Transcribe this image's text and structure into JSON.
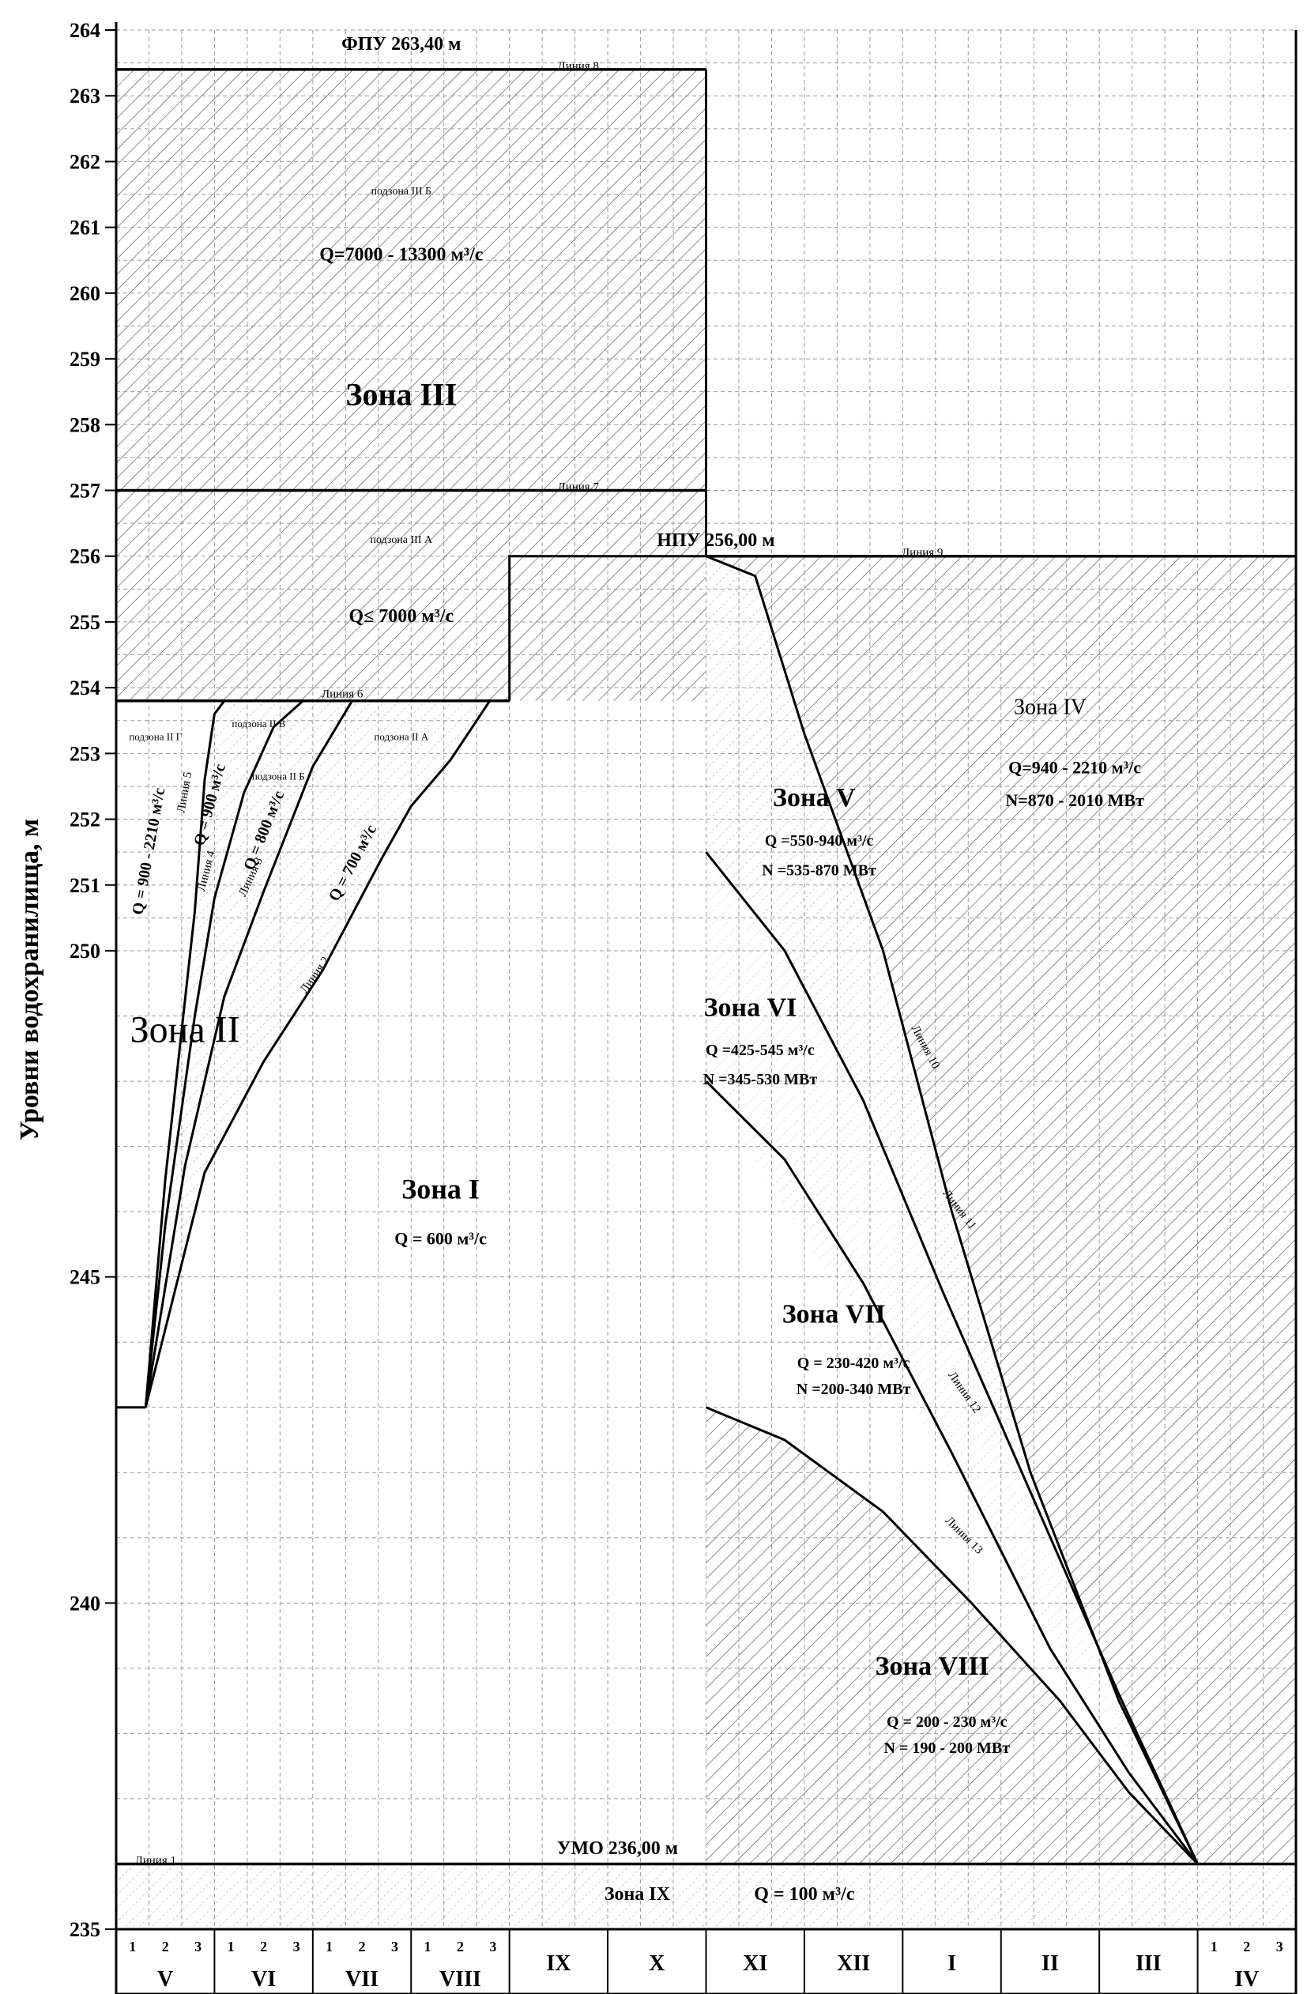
{
  "chart_data": {
    "type": "area",
    "title": "",
    "ylabel": "Уровни водохранилища, м",
    "xlabel": "",
    "ylim": [
      235,
      264
    ],
    "y_ticks": [
      235,
      240,
      245,
      250,
      251,
      252,
      253,
      254,
      255,
      256,
      257,
      258,
      259,
      260,
      261,
      262,
      263,
      264
    ],
    "grid": true,
    "months": [
      {
        "id": "V",
        "label": "V",
        "decades": [
          "1",
          "2",
          "3"
        ]
      },
      {
        "id": "VI",
        "label": "VI",
        "decades": [
          "1",
          "2",
          "3"
        ]
      },
      {
        "id": "VII",
        "label": "VII",
        "decades": [
          "1",
          "2",
          "3"
        ]
      },
      {
        "id": "VIII",
        "label": "VIII",
        "decades": [
          "1",
          "2",
          "3"
        ]
      },
      {
        "id": "IX",
        "label": "IX",
        "decades": []
      },
      {
        "id": "X",
        "label": "X",
        "decades": []
      },
      {
        "id": "XI",
        "label": "XI",
        "decades": []
      },
      {
        "id": "XII",
        "label": "XII",
        "decades": []
      },
      {
        "id": "I",
        "label": "I",
        "decades": []
      },
      {
        "id": "II",
        "label": "II",
        "decades": []
      },
      {
        "id": "III",
        "label": "III",
        "decades": []
      },
      {
        "id": "IV",
        "label": "IV",
        "decades": [
          "1",
          "2",
          "3"
        ]
      }
    ],
    "levels": {
      "fpu": {
        "label": "ФПУ 263,40 м",
        "value": 263.4
      },
      "npu": {
        "label": "НПУ 256,00 м",
        "value": 256.0
      },
      "umo": {
        "label": "УМО 236,00 м",
        "value": 236.0
      }
    },
    "lines": [
      {
        "name": "Линия 1",
        "points": [
          [
            0,
            236.0
          ],
          [
            12,
            236.0
          ]
        ]
      },
      {
        "name": "Линия 2",
        "points": [
          [
            0.3,
            243.0
          ],
          [
            0.9,
            246.6
          ],
          [
            1.5,
            248.3
          ],
          [
            2.1,
            249.7
          ],
          [
            2.7,
            251.4
          ],
          [
            3.0,
            252.2
          ],
          [
            3.4,
            252.9
          ],
          [
            3.8,
            253.8
          ],
          [
            4.0,
            253.8
          ]
        ]
      },
      {
        "name": "Линия 3",
        "points": [
          [
            0.3,
            243.0
          ],
          [
            0.7,
            246.7
          ],
          [
            1.1,
            249.3
          ],
          [
            1.5,
            250.9
          ],
          [
            2.0,
            252.8
          ],
          [
            2.4,
            253.8
          ],
          [
            4.0,
            253.8
          ]
        ]
      },
      {
        "name": "Линия 4",
        "points": [
          [
            0.3,
            243.0
          ],
          [
            0.5,
            245.8
          ],
          [
            0.8,
            249.0
          ],
          [
            1.0,
            250.8
          ],
          [
            1.3,
            252.4
          ],
          [
            1.6,
            253.4
          ],
          [
            1.9,
            253.8
          ],
          [
            4.0,
            253.8
          ]
        ]
      },
      {
        "name": "Линия 5",
        "points": [
          [
            0.3,
            243.0
          ],
          [
            0.5,
            246.5
          ],
          [
            0.8,
            250.6
          ],
          [
            0.9,
            252.6
          ],
          [
            1.0,
            253.6
          ],
          [
            1.1,
            253.8
          ],
          [
            4.0,
            253.8
          ]
        ]
      },
      {
        "name": "Линия 6",
        "points": [
          [
            0,
            253.8
          ],
          [
            4.0,
            253.8
          ]
        ]
      },
      {
        "name": "Линия 7",
        "points": [
          [
            0,
            257.0
          ],
          [
            6.0,
            257.0
          ]
        ]
      },
      {
        "name": "Линия 8",
        "points": [
          [
            0,
            263.4
          ],
          [
            6.0,
            263.4
          ]
        ]
      },
      {
        "name": "Линия 9",
        "points": [
          [
            6.0,
            256.0
          ],
          [
            12,
            256.0
          ]
        ]
      },
      {
        "name": "Линия 10",
        "points": [
          [
            6.0,
            256.0
          ],
          [
            6.5,
            255.7
          ],
          [
            7.0,
            253.3
          ],
          [
            7.8,
            250.0
          ],
          [
            8.5,
            246.0
          ],
          [
            9.3,
            242.0
          ],
          [
            10.2,
            238.5
          ],
          [
            11.0,
            236.0
          ]
        ]
      },
      {
        "name": "Линия 11",
        "points": [
          [
            6.0,
            251.5
          ],
          [
            6.8,
            250.0
          ],
          [
            7.6,
            247.7
          ],
          [
            8.4,
            244.8
          ],
          [
            9.3,
            241.7
          ],
          [
            10.2,
            238.6
          ],
          [
            11.0,
            236.0
          ]
        ]
      },
      {
        "name": "Линия 12",
        "points": [
          [
            6.0,
            248.0
          ],
          [
            6.8,
            246.8
          ],
          [
            7.6,
            244.9
          ],
          [
            8.5,
            242.3
          ],
          [
            9.5,
            239.3
          ],
          [
            10.3,
            237.4
          ],
          [
            11.0,
            236.0
          ]
        ]
      },
      {
        "name": "Линия 13",
        "points": [
          [
            6.0,
            243.0
          ],
          [
            6.8,
            242.5
          ],
          [
            7.8,
            241.4
          ],
          [
            8.7,
            240.0
          ],
          [
            9.6,
            238.5
          ],
          [
            10.3,
            237.1
          ],
          [
            11.0,
            236.0
          ]
        ]
      }
    ],
    "annotations": [
      {
        "text": "Линия 1",
        "x": 0.4,
        "y": 236.0,
        "size": 15
      },
      {
        "text": "Линия 2",
        "x": 2.05,
        "y": 249.6,
        "size": 15,
        "rot": -55
      },
      {
        "text": "Линия 3",
        "x": 1.4,
        "y": 251.1,
        "size": 15,
        "rot": -65
      },
      {
        "text": "Линия 4",
        "x": 0.95,
        "y": 251.2,
        "size": 15,
        "rot": -75
      },
      {
        "text": "Линия 5",
        "x": 0.73,
        "y": 252.4,
        "size": 15,
        "rot": -80
      },
      {
        "text": "Линия 6",
        "x": 2.3,
        "y": 253.85,
        "size": 15
      },
      {
        "text": "Линия 7",
        "x": 4.7,
        "y": 257.0,
        "size": 15
      },
      {
        "text": "Линия 8",
        "x": 4.7,
        "y": 263.4,
        "size": 15
      },
      {
        "text": "Линия 9",
        "x": 8.2,
        "y": 256.0,
        "size": 15
      },
      {
        "text": "Линия 10",
        "x": 8.2,
        "y": 248.5,
        "size": 15,
        "rot": 62
      },
      {
        "text": "Линия 11",
        "x": 8.55,
        "y": 246.0,
        "size": 15,
        "rot": 52
      },
      {
        "text": "Линия 12",
        "x": 8.6,
        "y": 243.2,
        "size": 15,
        "rot": 55
      },
      {
        "text": "Линия 13",
        "x": 8.6,
        "y": 241.0,
        "size": 15,
        "rot": 45
      },
      {
        "text": "ФПУ 263,40 м",
        "x": 2.9,
        "y": 263.7,
        "size": 24,
        "bold": true
      },
      {
        "text": "НПУ 256,00 м",
        "x": 6.1,
        "y": 256.15,
        "size": 24,
        "bold": true
      },
      {
        "text": "УМО 236,00 м",
        "x": 5.1,
        "y": 236.15,
        "size": 24,
        "bold": true
      },
      {
        "text": "подзона III Б",
        "x": 2.9,
        "y": 261.5,
        "size": 14
      },
      {
        "text": "Q=7000 - 13300 м³/с",
        "x": 2.9,
        "y": 260.5,
        "size": 24,
        "bold": true
      },
      {
        "text": "Зона III",
        "x": 2.9,
        "y": 258.3,
        "size": 40,
        "bold": true
      },
      {
        "text": "подзона III А",
        "x": 2.9,
        "y": 256.2,
        "size": 14
      },
      {
        "text": "Q≤ 7000 м³/с",
        "x": 2.9,
        "y": 255.0,
        "size": 24,
        "bold": true
      },
      {
        "text": "подзона II Г",
        "x": 0.4,
        "y": 253.2,
        "size": 13
      },
      {
        "text": "подзона II В",
        "x": 1.45,
        "y": 253.4,
        "size": 13
      },
      {
        "text": "подзона II Б",
        "x": 1.65,
        "y": 252.6,
        "size": 13
      },
      {
        "text": "подзона II А",
        "x": 2.9,
        "y": 253.2,
        "size": 13
      },
      {
        "text": "Q = 900 - 2210 м³/с",
        "x": 0.38,
        "y": 251.5,
        "size": 20,
        "bold": true,
        "rot": -80
      },
      {
        "text": "Q = 900 м³/с",
        "x": 1.0,
        "y": 252.2,
        "size": 20,
        "bold": true,
        "rot": -75
      },
      {
        "text": "Q = 800 м³/с",
        "x": 1.55,
        "y": 251.8,
        "size": 20,
        "bold": true,
        "rot": -68
      },
      {
        "text": "Q = 700 м³/с",
        "x": 2.45,
        "y": 251.3,
        "size": 20,
        "bold": true,
        "rot": -62
      },
      {
        "text": "Зона II",
        "x": 0.7,
        "y": 248.6,
        "size": 48,
        "bold": false
      },
      {
        "text": "Зона I",
        "x": 3.3,
        "y": 246.2,
        "size": 36,
        "bold": true
      },
      {
        "text": "Q = 600 м³/с",
        "x": 3.3,
        "y": 245.5,
        "size": 22,
        "bold": true
      },
      {
        "text": "Зона IV",
        "x": 9.5,
        "y": 253.6,
        "size": 28,
        "bold": false
      },
      {
        "text": "Q=940 - 2210 м³/с",
        "x": 9.75,
        "y": 252.7,
        "size": 22,
        "bold": true
      },
      {
        "text": "N=870 - 2010 МВт",
        "x": 9.75,
        "y": 252.2,
        "size": 22,
        "bold": true
      },
      {
        "text": "Зона V",
        "x": 7.1,
        "y": 252.2,
        "size": 34,
        "bold": true
      },
      {
        "text": "Q =550-940 м³/с",
        "x": 7.15,
        "y": 251.6,
        "size": 20,
        "bold": true
      },
      {
        "text": "N =535-870 МВт",
        "x": 7.15,
        "y": 251.15,
        "size": 20,
        "bold": true
      },
      {
        "text": "Зона VI",
        "x": 6.45,
        "y": 249.0,
        "size": 34,
        "bold": true
      },
      {
        "text": "Q =425-545 м³/с",
        "x": 6.55,
        "y": 248.4,
        "size": 20,
        "bold": true
      },
      {
        "text": "N =345-530 МВт",
        "x": 6.55,
        "y": 247.95,
        "size": 20,
        "bold": true
      },
      {
        "text": "Зона VII",
        "x": 7.3,
        "y": 244.3,
        "size": 34,
        "bold": true
      },
      {
        "text": "Q = 230-420 м³/с",
        "x": 7.5,
        "y": 243.6,
        "size": 20,
        "bold": true
      },
      {
        "text": "N =200-340 МВт",
        "x": 7.5,
        "y": 243.2,
        "size": 20,
        "bold": true
      },
      {
        "text": "Зона VIII",
        "x": 8.3,
        "y": 238.9,
        "size": 34,
        "bold": true
      },
      {
        "text": "Q = 200 - 230 м³/с",
        "x": 8.45,
        "y": 238.1,
        "size": 20,
        "bold": true
      },
      {
        "text": "N = 190 - 200 МВт",
        "x": 8.45,
        "y": 237.7,
        "size": 20,
        "bold": true
      },
      {
        "text": "Зона IX",
        "x": 5.3,
        "y": 235.45,
        "size": 24,
        "bold": true
      },
      {
        "text": "Q = 100 м³/с",
        "x": 7.0,
        "y": 235.45,
        "size": 24,
        "bold": true
      }
    ]
  }
}
